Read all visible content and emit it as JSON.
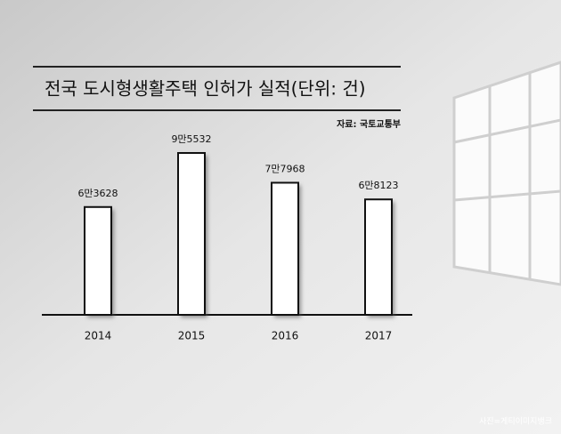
{
  "chart_data": {
    "type": "bar",
    "title": "전국 도시형생활주택 인허가 실적(단위: 건)",
    "source": "자료: 국토교통부",
    "credit": "사진=게티이미지뱅크",
    "categories": [
      "2014",
      "2015",
      "2016",
      "2017"
    ],
    "values": [
      63628,
      95532,
      77968,
      68123
    ],
    "value_labels": [
      "6만3628",
      "9만5532",
      "7만7968",
      "6만8123"
    ],
    "color": "#ffffff"
  }
}
